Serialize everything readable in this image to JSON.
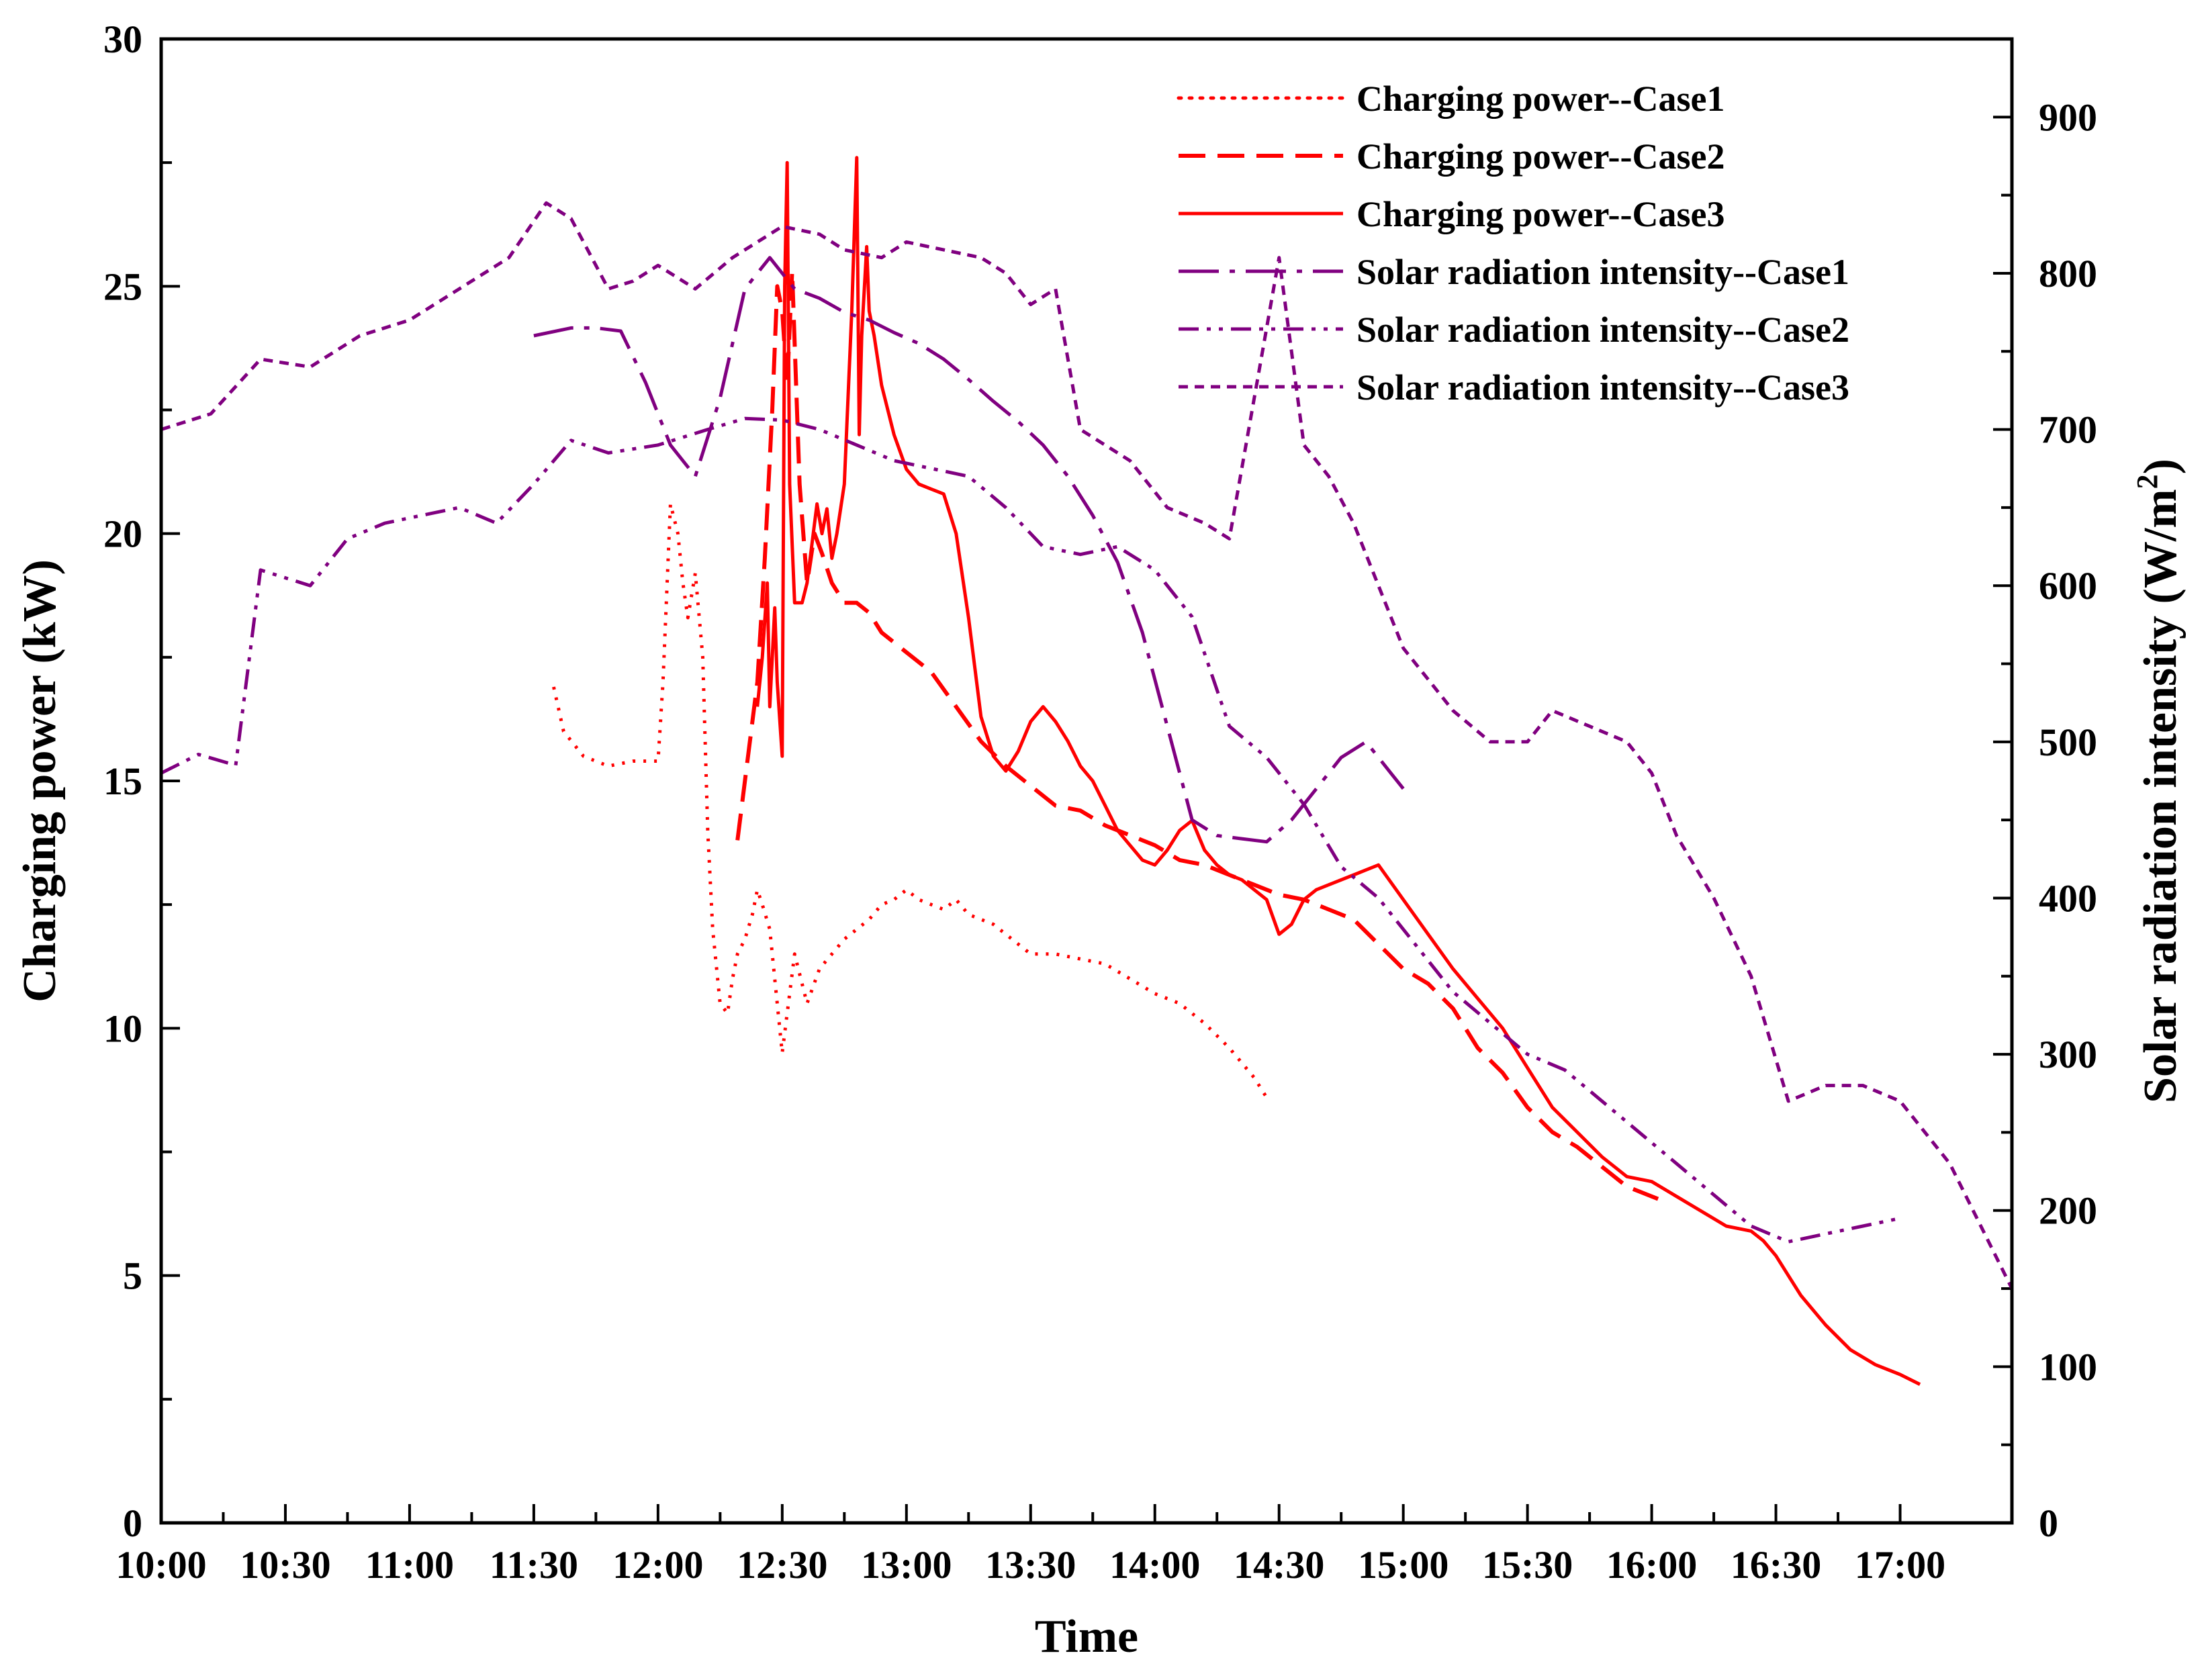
{
  "chart_data": {
    "type": "line",
    "title": "",
    "xlabel": "Time",
    "ylabel": "Charging power (kW)",
    "y2label_main": "Solar radiation intensity (W/m",
    "y2label_sup": "2",
    "y2label_end": ")",
    "xlim": [
      10.0,
      17.45
    ],
    "ylim": [
      0,
      30
    ],
    "y2lim": [
      0,
      950
    ],
    "x_ticks": [
      {
        "v": 10.0,
        "label": "10:00"
      },
      {
        "v": 10.5,
        "label": "10:30"
      },
      {
        "v": 11.0,
        "label": "11:00"
      },
      {
        "v": 11.5,
        "label": "11:30"
      },
      {
        "v": 12.0,
        "label": "12:00"
      },
      {
        "v": 12.5,
        "label": "12:30"
      },
      {
        "v": 13.0,
        "label": "13:00"
      },
      {
        "v": 13.5,
        "label": "13:30"
      },
      {
        "v": 14.0,
        "label": "14:00"
      },
      {
        "v": 14.5,
        "label": "14:30"
      },
      {
        "v": 15.0,
        "label": "15:00"
      },
      {
        "v": 15.5,
        "label": "15:30"
      },
      {
        "v": 16.0,
        "label": "16:00"
      },
      {
        "v": 16.5,
        "label": "16:30"
      },
      {
        "v": 17.0,
        "label": "17:00"
      }
    ],
    "y_ticks": [
      {
        "v": 0,
        "label": "0"
      },
      {
        "v": 5,
        "label": "5"
      },
      {
        "v": 10,
        "label": "10"
      },
      {
        "v": 15,
        "label": "15"
      },
      {
        "v": 20,
        "label": "20"
      },
      {
        "v": 25,
        "label": "25"
      },
      {
        "v": 30,
        "label": "30"
      }
    ],
    "y2_ticks": [
      {
        "v": 0,
        "label": "0"
      },
      {
        "v": 100,
        "label": "100"
      },
      {
        "v": 200,
        "label": "200"
      },
      {
        "v": 300,
        "label": "300"
      },
      {
        "v": 400,
        "label": "400"
      },
      {
        "v": 500,
        "label": "500"
      },
      {
        "v": 600,
        "label": "600"
      },
      {
        "v": 700,
        "label": "700"
      },
      {
        "v": 800,
        "label": "800"
      },
      {
        "v": 900,
        "label": "900"
      }
    ],
    "series": [
      {
        "name": "Charging power--Case1",
        "axis": "left",
        "style": "dotted",
        "color": "#ff0000",
        "x": [
          11.58,
          11.62,
          11.7,
          11.8,
          11.9,
          11.95,
          12.0,
          12.02,
          12.05,
          12.08,
          12.1,
          12.12,
          12.15,
          12.18,
          12.2,
          12.22,
          12.25,
          12.28,
          12.3,
          12.32,
          12.35,
          12.38,
          12.4,
          12.42,
          12.45,
          12.48,
          12.5,
          12.52,
          12.55,
          12.6,
          12.65,
          12.7,
          12.75,
          12.8,
          12.85,
          12.9,
          12.95,
          13.0,
          13.05,
          13.1,
          13.15,
          13.2,
          13.25,
          13.3,
          13.35,
          13.4,
          13.5,
          13.6,
          13.7,
          13.8,
          13.9,
          14.0,
          14.1,
          14.2,
          14.3,
          14.4,
          14.45
        ],
        "y": [
          16.9,
          16.0,
          15.5,
          15.3,
          15.4,
          15.4,
          15.4,
          17.0,
          20.6,
          20.0,
          19.0,
          18.3,
          19.2,
          17.5,
          14.0,
          12.0,
          10.5,
          10.3,
          11.0,
          11.5,
          11.8,
          12.3,
          12.8,
          12.5,
          12.0,
          10.5,
          9.5,
          10.3,
          11.5,
          10.5,
          11.2,
          11.5,
          11.8,
          12.0,
          12.2,
          12.5,
          12.6,
          12.8,
          12.6,
          12.5,
          12.4,
          12.6,
          12.3,
          12.2,
          12.1,
          11.9,
          11.5,
          11.5,
          11.4,
          11.3,
          11.0,
          10.7,
          10.5,
          10.1,
          9.6,
          9.0,
          8.6
        ]
      },
      {
        "name": "Charging power--Case2",
        "axis": "left",
        "style": "dashed",
        "color": "#ff0000",
        "x": [
          12.32,
          12.35,
          12.4,
          12.43,
          12.46,
          12.48,
          12.5,
          12.52,
          12.54,
          12.57,
          12.6,
          12.63,
          12.66,
          12.7,
          12.75,
          12.8,
          12.85,
          12.9,
          13.0,
          13.1,
          13.2,
          13.3,
          13.4,
          13.5,
          13.6,
          13.7,
          13.8,
          13.9,
          14.0,
          14.1,
          14.2,
          14.3,
          14.4,
          14.5,
          14.6,
          14.7,
          14.8,
          14.9,
          15.0,
          15.1,
          15.2,
          15.3,
          15.4,
          15.5,
          15.6,
          15.7,
          15.8,
          15.9,
          16.0,
          16.05
        ],
        "y": [
          13.8,
          15.0,
          17.0,
          19.5,
          22.5,
          25.0,
          24.5,
          23.0,
          25.3,
          21.0,
          19.0,
          20.0,
          19.6,
          19.0,
          18.6,
          18.6,
          18.4,
          18.0,
          17.6,
          17.2,
          16.5,
          15.8,
          15.3,
          14.9,
          14.5,
          14.4,
          14.1,
          13.9,
          13.7,
          13.4,
          13.3,
          13.1,
          12.9,
          12.7,
          12.6,
          12.4,
          12.2,
          11.7,
          11.2,
          10.9,
          10.4,
          9.6,
          9.1,
          8.4,
          7.9,
          7.6,
          7.2,
          6.8,
          6.6,
          6.5
        ]
      },
      {
        "name": "Charging power--Case3",
        "axis": "left",
        "style": "solid",
        "color": "#ff0000",
        "x": [
          12.4,
          12.42,
          12.44,
          12.45,
          12.47,
          12.48,
          12.5,
          12.51,
          12.52,
          12.53,
          12.55,
          12.58,
          12.6,
          12.62,
          12.64,
          12.66,
          12.68,
          12.7,
          12.72,
          12.75,
          12.78,
          12.8,
          12.81,
          12.82,
          12.84,
          12.85,
          12.87,
          12.9,
          12.95,
          13.0,
          13.05,
          13.1,
          13.15,
          13.2,
          13.25,
          13.3,
          13.35,
          13.4,
          13.45,
          13.5,
          13.55,
          13.6,
          13.65,
          13.7,
          13.75,
          13.8,
          13.85,
          13.9,
          13.95,
          14.0,
          14.05,
          14.1,
          14.15,
          14.2,
          14.25,
          14.3,
          14.35,
          14.4,
          14.45,
          14.5,
          14.55,
          14.6,
          14.65,
          14.7,
          14.8,
          14.9,
          15.0,
          15.1,
          15.2,
          15.3,
          15.4,
          15.5,
          15.6,
          15.7,
          15.8,
          15.9,
          16.0,
          16.1,
          16.2,
          16.3,
          16.4,
          16.45,
          16.5,
          16.55,
          16.6,
          16.7,
          16.8,
          16.9,
          17.0,
          17.08
        ],
        "y": [
          16.5,
          17.5,
          19.0,
          16.5,
          18.5,
          17.0,
          15.5,
          25.0,
          27.5,
          21.0,
          18.6,
          18.6,
          19.0,
          19.8,
          20.6,
          20.0,
          20.5,
          19.5,
          20.0,
          21.0,
          24.5,
          27.6,
          22.0,
          24.0,
          25.8,
          24.5,
          24.0,
          23.0,
          22.0,
          21.3,
          21.0,
          20.9,
          20.8,
          20.0,
          18.3,
          16.3,
          15.5,
          15.2,
          15.6,
          16.2,
          16.5,
          16.2,
          15.8,
          15.3,
          15.0,
          14.5,
          14.0,
          13.7,
          13.4,
          13.3,
          13.6,
          14.0,
          14.2,
          13.6,
          13.3,
          13.1,
          13.0,
          12.8,
          12.6,
          11.9,
          12.1,
          12.6,
          12.8,
          12.9,
          13.1,
          13.3,
          12.6,
          11.9,
          11.2,
          10.6,
          10.0,
          9.2,
          8.4,
          7.9,
          7.4,
          7.0,
          6.9,
          6.6,
          6.3,
          6.0,
          5.9,
          5.7,
          5.4,
          5.0,
          4.6,
          4.0,
          3.5,
          3.2,
          3.0,
          2.8
        ]
      },
      {
        "name": "Solar radiation intensity--Case1",
        "axis": "right",
        "style": "longdashdot",
        "color": "#800080",
        "x": [
          11.5,
          11.65,
          11.75,
          11.85,
          11.95,
          12.05,
          12.15,
          12.25,
          12.35,
          12.45,
          12.55,
          12.65,
          12.75,
          12.85,
          12.95,
          13.05,
          13.15,
          13.25,
          13.35,
          13.45,
          13.55,
          13.65,
          13.75,
          13.85,
          13.95,
          14.05,
          14.15,
          14.25,
          14.35,
          14.45,
          14.55,
          14.65,
          14.75,
          14.85,
          14.95,
          15.0
        ],
        "y": [
          760,
          765,
          765,
          763,
          730,
          690,
          670,
          720,
          790,
          810,
          790,
          784,
          775,
          770,
          762,
          755,
          745,
          732,
          718,
          705,
          690,
          670,
          645,
          615,
          570,
          510,
          450,
          440,
          438,
          436,
          450,
          470,
          490,
          500,
          480,
          470
        ]
      },
      {
        "name": "Solar radiation intensity--Case2",
        "axis": "right",
        "style": "dashdotdot",
        "color": "#800080",
        "x": [
          10.0,
          10.15,
          10.3,
          10.4,
          10.5,
          10.6,
          10.75,
          10.9,
          11.05,
          11.2,
          11.35,
          11.5,
          11.65,
          11.8,
          12.0,
          12.2,
          12.35,
          12.5,
          12.65,
          12.8,
          12.95,
          13.1,
          13.25,
          13.4,
          13.55,
          13.7,
          13.85,
          14.0,
          14.15,
          14.3,
          14.45,
          14.6,
          14.75,
          14.9,
          15.05,
          15.2,
          15.35,
          15.5,
          15.65,
          15.8,
          15.95,
          16.1,
          16.25,
          16.4,
          16.55,
          16.7,
          16.85,
          17.0
        ],
        "y": [
          480,
          492,
          485,
          610,
          605,
          600,
          630,
          640,
          645,
          650,
          640,
          665,
          693,
          685,
          690,
          700,
          707,
          706,
          700,
          690,
          680,
          675,
          670,
          650,
          625,
          620,
          625,
          610,
          580,
          510,
          490,
          460,
          420,
          400,
          370,
          340,
          320,
          300,
          290,
          270,
          250,
          230,
          210,
          190,
          180,
          185,
          190,
          195
        ]
      },
      {
        "name": "Solar radiation intensity--Case3",
        "axis": "right",
        "style": "shortdash",
        "color": "#800080",
        "x": [
          10.0,
          10.2,
          10.4,
          10.6,
          10.8,
          11.0,
          11.2,
          11.4,
          11.55,
          11.65,
          11.8,
          11.9,
          12.0,
          12.15,
          12.3,
          12.5,
          12.65,
          12.75,
          12.9,
          13.0,
          13.15,
          13.3,
          13.4,
          13.5,
          13.6,
          13.7,
          13.8,
          13.9,
          14.0,
          14.05,
          14.2,
          14.3,
          14.5,
          14.6,
          14.7,
          14.8,
          14.9,
          15.0,
          15.2,
          15.35,
          15.5,
          15.6,
          15.75,
          15.9,
          16.0,
          16.1,
          16.25,
          16.4,
          16.55,
          16.7,
          16.85,
          17.0,
          17.2,
          17.45
        ],
        "y": [
          700,
          710,
          745,
          740,
          760,
          770,
          790,
          810,
          845,
          835,
          790,
          795,
          805,
          790,
          810,
          830,
          825,
          815,
          810,
          820,
          815,
          810,
          800,
          780,
          790,
          700,
          690,
          680,
          660,
          650,
          640,
          630,
          810,
          690,
          670,
          640,
          600,
          560,
          520,
          500,
          500,
          520,
          510,
          500,
          480,
          440,
          400,
          350,
          270,
          280,
          280,
          270,
          230,
          150
        ]
      }
    ],
    "legend": [
      "Charging power--Case1",
      "Charging power--Case2",
      "Charging power--Case3",
      "Solar radiation intensity--Case1",
      "Solar radiation intensity--Case2",
      "Solar radiation intensity--Case3"
    ]
  }
}
